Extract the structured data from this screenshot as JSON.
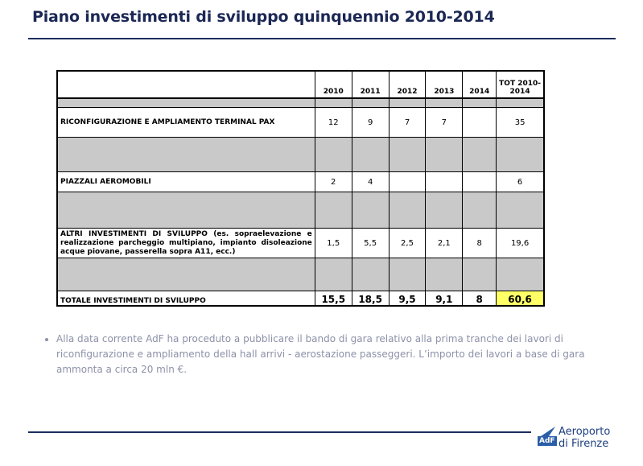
{
  "header": {
    "title": "Piano investimenti di sviluppo quinquennio 2010-2014"
  },
  "table": {
    "columns": [
      null,
      "2010",
      "2011",
      "2012",
      "2013",
      "2014",
      "TOT 2010-2014"
    ],
    "rows": [
      [
        "RICONFIGURAZIONE E AMPLIAMENTO TERMINAL PAX",
        "12",
        "9",
        "7",
        "7",
        null,
        "35"
      ],
      [
        "PIAZZALI AEROMOBILI",
        "2",
        "4",
        null,
        null,
        null,
        "6"
      ],
      [
        "ALTRI INVESTIMENTI DI SVILUPPO (es. sopraelevazione e realizzazione parcheggio multipiano, impianto disoleazione acque piovane, passerella sopra A11, ecc.)",
        "1,5",
        "5,5",
        "2,5",
        "2,1",
        "8",
        "19,6"
      ],
      [
        "TOTALE INVESTIMENTI DI SVILUPPO",
        "15,5",
        "18,5",
        "9,5",
        "9,1",
        "8",
        "60,6"
      ]
    ]
  },
  "bullets": [
    "Alla data corrente AdF ha proceduto a pubblicare il bando di gara relativo alla prima tranche dei lavori di riconfigurazione e ampliamento della hall arrivi - aerostazione passeggeri. L’importo dei lavori a base di gara ammonta a circa 20 mln €."
  ],
  "logo": {
    "badge": "AdF",
    "line1": "Aeroporto",
    "line2": "di Firenze"
  }
}
